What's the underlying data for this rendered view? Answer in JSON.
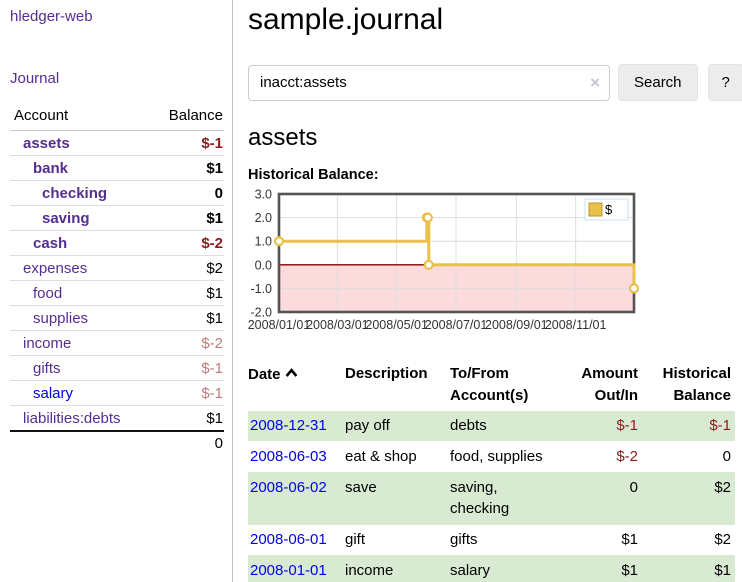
{
  "app": {
    "brand": "hledger-web",
    "nav": {
      "journal_label": "Journal"
    }
  },
  "sidebar": {
    "header": {
      "account": "Account",
      "balance": "Balance"
    },
    "accounts": [
      {
        "name": "assets",
        "indent": 1,
        "bold": true,
        "balance": "$-1",
        "neg": "strong",
        "link": "purple"
      },
      {
        "name": "bank",
        "indent": 2,
        "bold": true,
        "balance": "$1",
        "neg": "none",
        "link": "purple"
      },
      {
        "name": "checking",
        "indent": 3,
        "bold": true,
        "balance": "0",
        "neg": "none",
        "link": "purple"
      },
      {
        "name": "saving",
        "indent": 3,
        "bold": true,
        "balance": "$1",
        "neg": "none",
        "link": "purple"
      },
      {
        "name": "cash",
        "indent": 2,
        "bold": true,
        "balance": "$-2",
        "neg": "strong",
        "link": "purple"
      },
      {
        "name": "expenses",
        "indent": 1,
        "bold": false,
        "balance": "$2",
        "neg": "none",
        "link": "purple"
      },
      {
        "name": "food",
        "indent": 2,
        "bold": false,
        "balance": "$1",
        "neg": "none",
        "link": "purple"
      },
      {
        "name": "supplies",
        "indent": 2,
        "bold": false,
        "balance": "$1",
        "neg": "none",
        "link": "purple"
      },
      {
        "name": "income",
        "indent": 1,
        "bold": false,
        "balance": "$-2",
        "neg": "soft",
        "link": "purple"
      },
      {
        "name": "gifts",
        "indent": 2,
        "bold": false,
        "balance": "$-1",
        "neg": "soft",
        "link": "purple"
      },
      {
        "name": "salary",
        "indent": 2,
        "bold": false,
        "balance": "$-1",
        "neg": "soft",
        "link": "blue"
      },
      {
        "name": "liabilities:debts",
        "indent": 1,
        "bold": false,
        "balance": "$1",
        "neg": "none",
        "link": "purple"
      }
    ],
    "total": "0"
  },
  "header": {
    "title": "sample.journal"
  },
  "search": {
    "value": "inacct:assets",
    "clear_icon": "×",
    "search_label": "Search",
    "help_label": "?"
  },
  "account_page": {
    "heading": "assets",
    "chart_label": "Historical Balance:"
  },
  "chart_data": {
    "type": "line",
    "step": true,
    "title": "Historical Balance",
    "series": [
      {
        "name": "$",
        "x": [
          "2008-01-01",
          "2008-06-01",
          "2008-06-02",
          "2008-06-03",
          "2008-12-31"
        ],
        "y": [
          1,
          2,
          2,
          0,
          -1
        ]
      }
    ],
    "xlim": [
      "2008-01-01",
      "2008-12-31"
    ],
    "ylim": [
      -2,
      3
    ],
    "yticks": [
      3,
      2,
      1,
      0,
      -1,
      -2
    ],
    "ytick_labels": [
      "3.0",
      "2.0",
      "1.0",
      "0.0",
      "-1.0",
      "-2.0"
    ],
    "xticks": [
      "2008-01-01",
      "2008-03-01",
      "2008-05-01",
      "2008-07-01",
      "2008-09-01",
      "2008-11-01"
    ],
    "xtick_labels": [
      "2008/01/01",
      "2008/03/01",
      "2008/05/01",
      "2008/07/01",
      "2008/09/01",
      "2008/11/01"
    ],
    "legend": {
      "label": "$",
      "position": "top-right"
    },
    "grid": true,
    "colors": {
      "line": "#e8c04a",
      "marker_fill": "#ffffff",
      "negative_fill": "#fbdbdb",
      "zero_line": "#8b0000",
      "border": "#545454",
      "gridline": "#dedede"
    }
  },
  "register": {
    "columns": [
      "Date",
      "Description",
      "To/From Account(s)",
      "Amount Out/In",
      "Historical Balance"
    ],
    "sort_icon": "chevron-up",
    "rows": [
      {
        "date": "2008-12-31",
        "description": "pay off",
        "accounts": "debts",
        "amount": "$-1",
        "amount_neg": true,
        "balance": "$-1",
        "balance_neg": true,
        "shade": true
      },
      {
        "date": "2008-06-03",
        "description": "eat & shop",
        "accounts": "food, supplies",
        "amount": "$-2",
        "amount_neg": true,
        "balance": "0",
        "balance_neg": false,
        "shade": false
      },
      {
        "date": "2008-06-02",
        "description": "save",
        "accounts": "saving, checking",
        "amount": "0",
        "amount_neg": false,
        "balance": "$2",
        "balance_neg": false,
        "shade": true
      },
      {
        "date": "2008-06-01",
        "description": "gift",
        "accounts": "gifts",
        "amount": "$1",
        "amount_neg": false,
        "balance": "$2",
        "balance_neg": false,
        "shade": false
      },
      {
        "date": "2008-01-01",
        "description": "income",
        "accounts": "salary",
        "amount": "$1",
        "amount_neg": false,
        "balance": "$1",
        "balance_neg": false,
        "shade": true
      }
    ]
  }
}
